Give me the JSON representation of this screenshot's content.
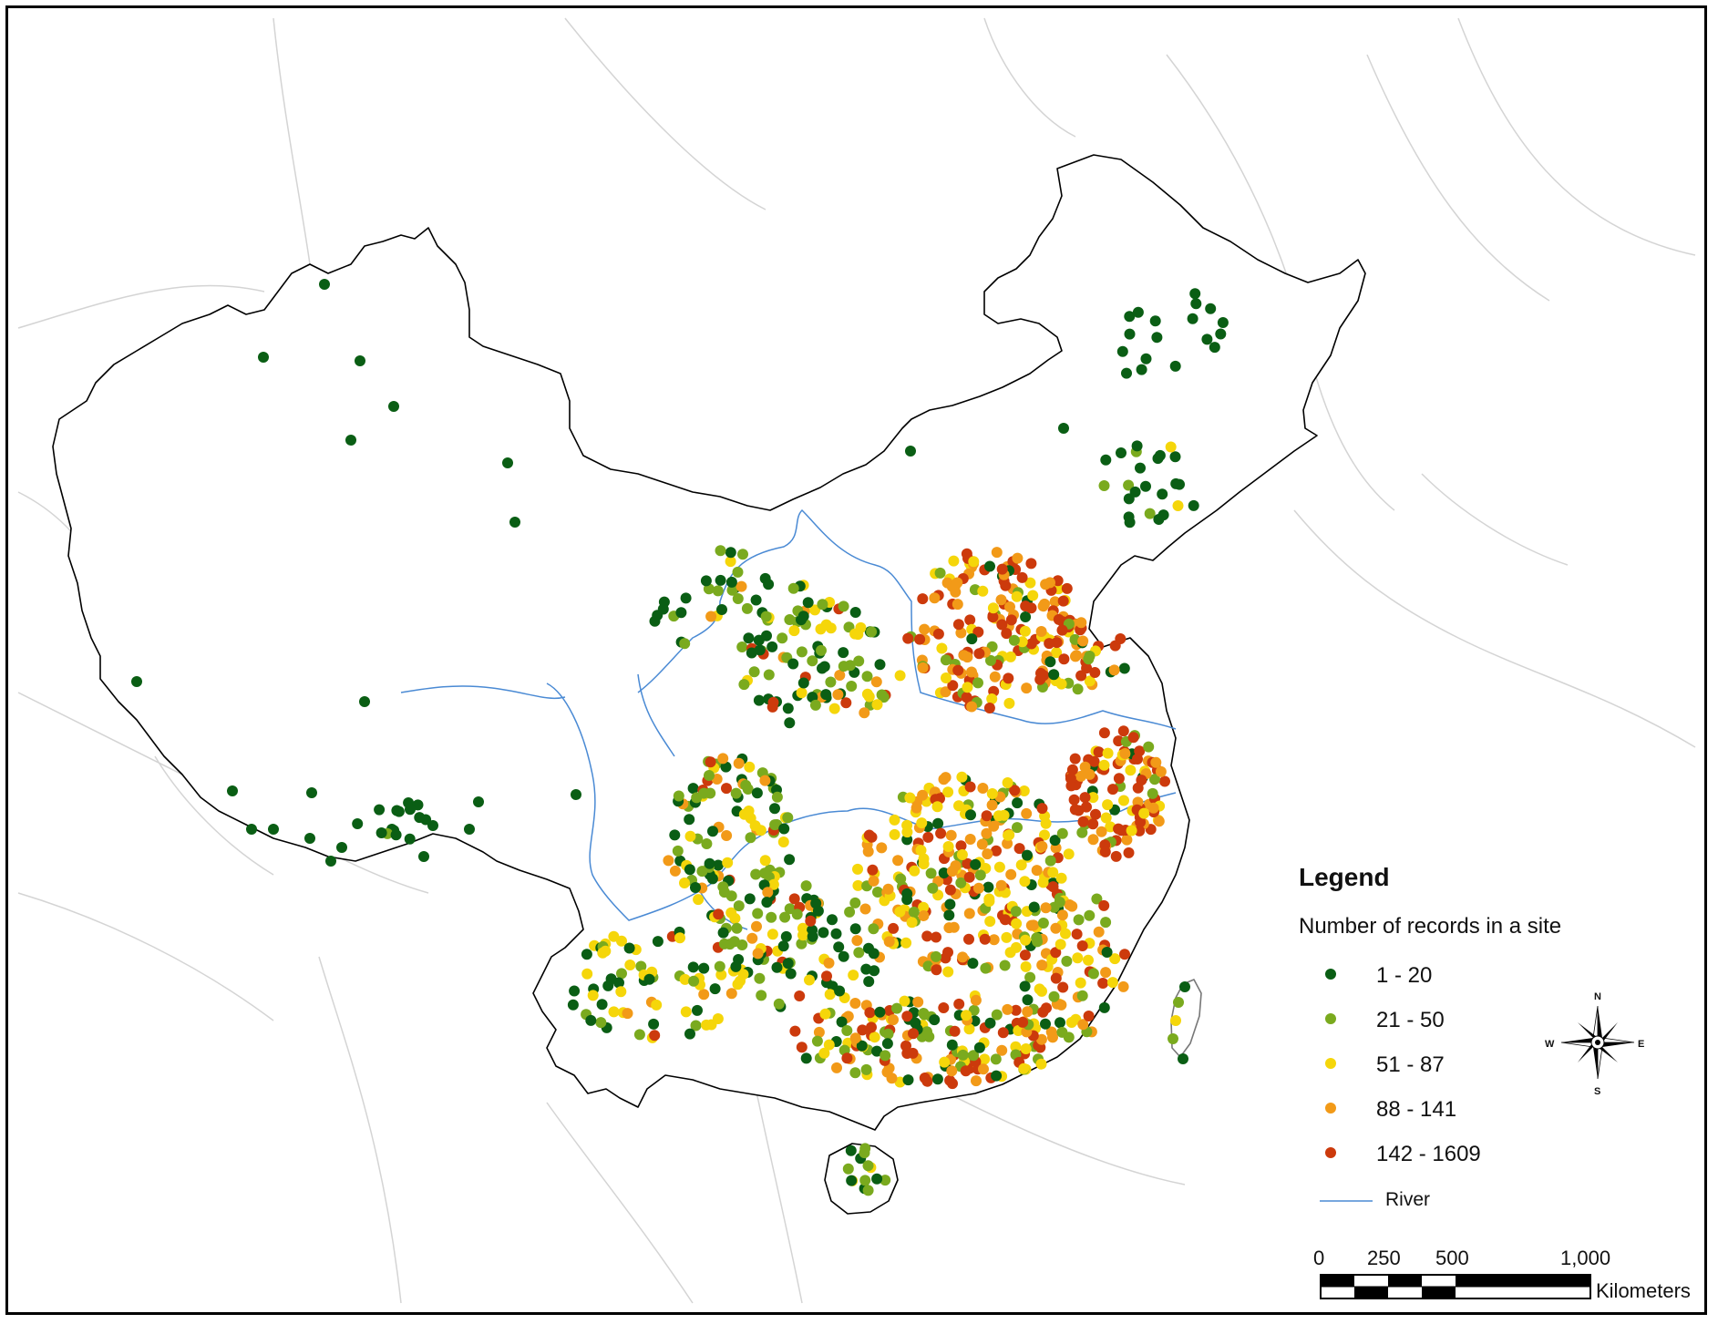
{
  "legend": {
    "title": "Legend",
    "subtitle": "Number of records in a site",
    "classes": [
      {
        "label": "1 - 20",
        "color": "#0a5e14",
        "icon": "dot"
      },
      {
        "label": "21 - 50",
        "color": "#7aaa1e",
        "icon": "dot"
      },
      {
        "label": "51 - 87",
        "color": "#f5d60a",
        "icon": "dot"
      },
      {
        "label": "88 - 141",
        "color": "#f29a18",
        "icon": "dot"
      },
      {
        "label": "142 - 1609",
        "color": "#cc3a0c",
        "icon": "dot"
      }
    ],
    "river": {
      "label": "River",
      "color": "#4a8ad4",
      "icon": "line"
    }
  },
  "compass": {
    "n": "N",
    "s": "S",
    "e": "E",
    "w": "W",
    "icon": "compass-rose-icon"
  },
  "scale_bar": {
    "ticks": [
      "0",
      "250",
      "500",
      "1,000"
    ],
    "unit": "Kilometers"
  },
  "colors": {
    "border": "#000000",
    "background_land": "#ffffff",
    "neighbor_border": "#cfcfcf",
    "river": "#4a8ad4"
  }
}
